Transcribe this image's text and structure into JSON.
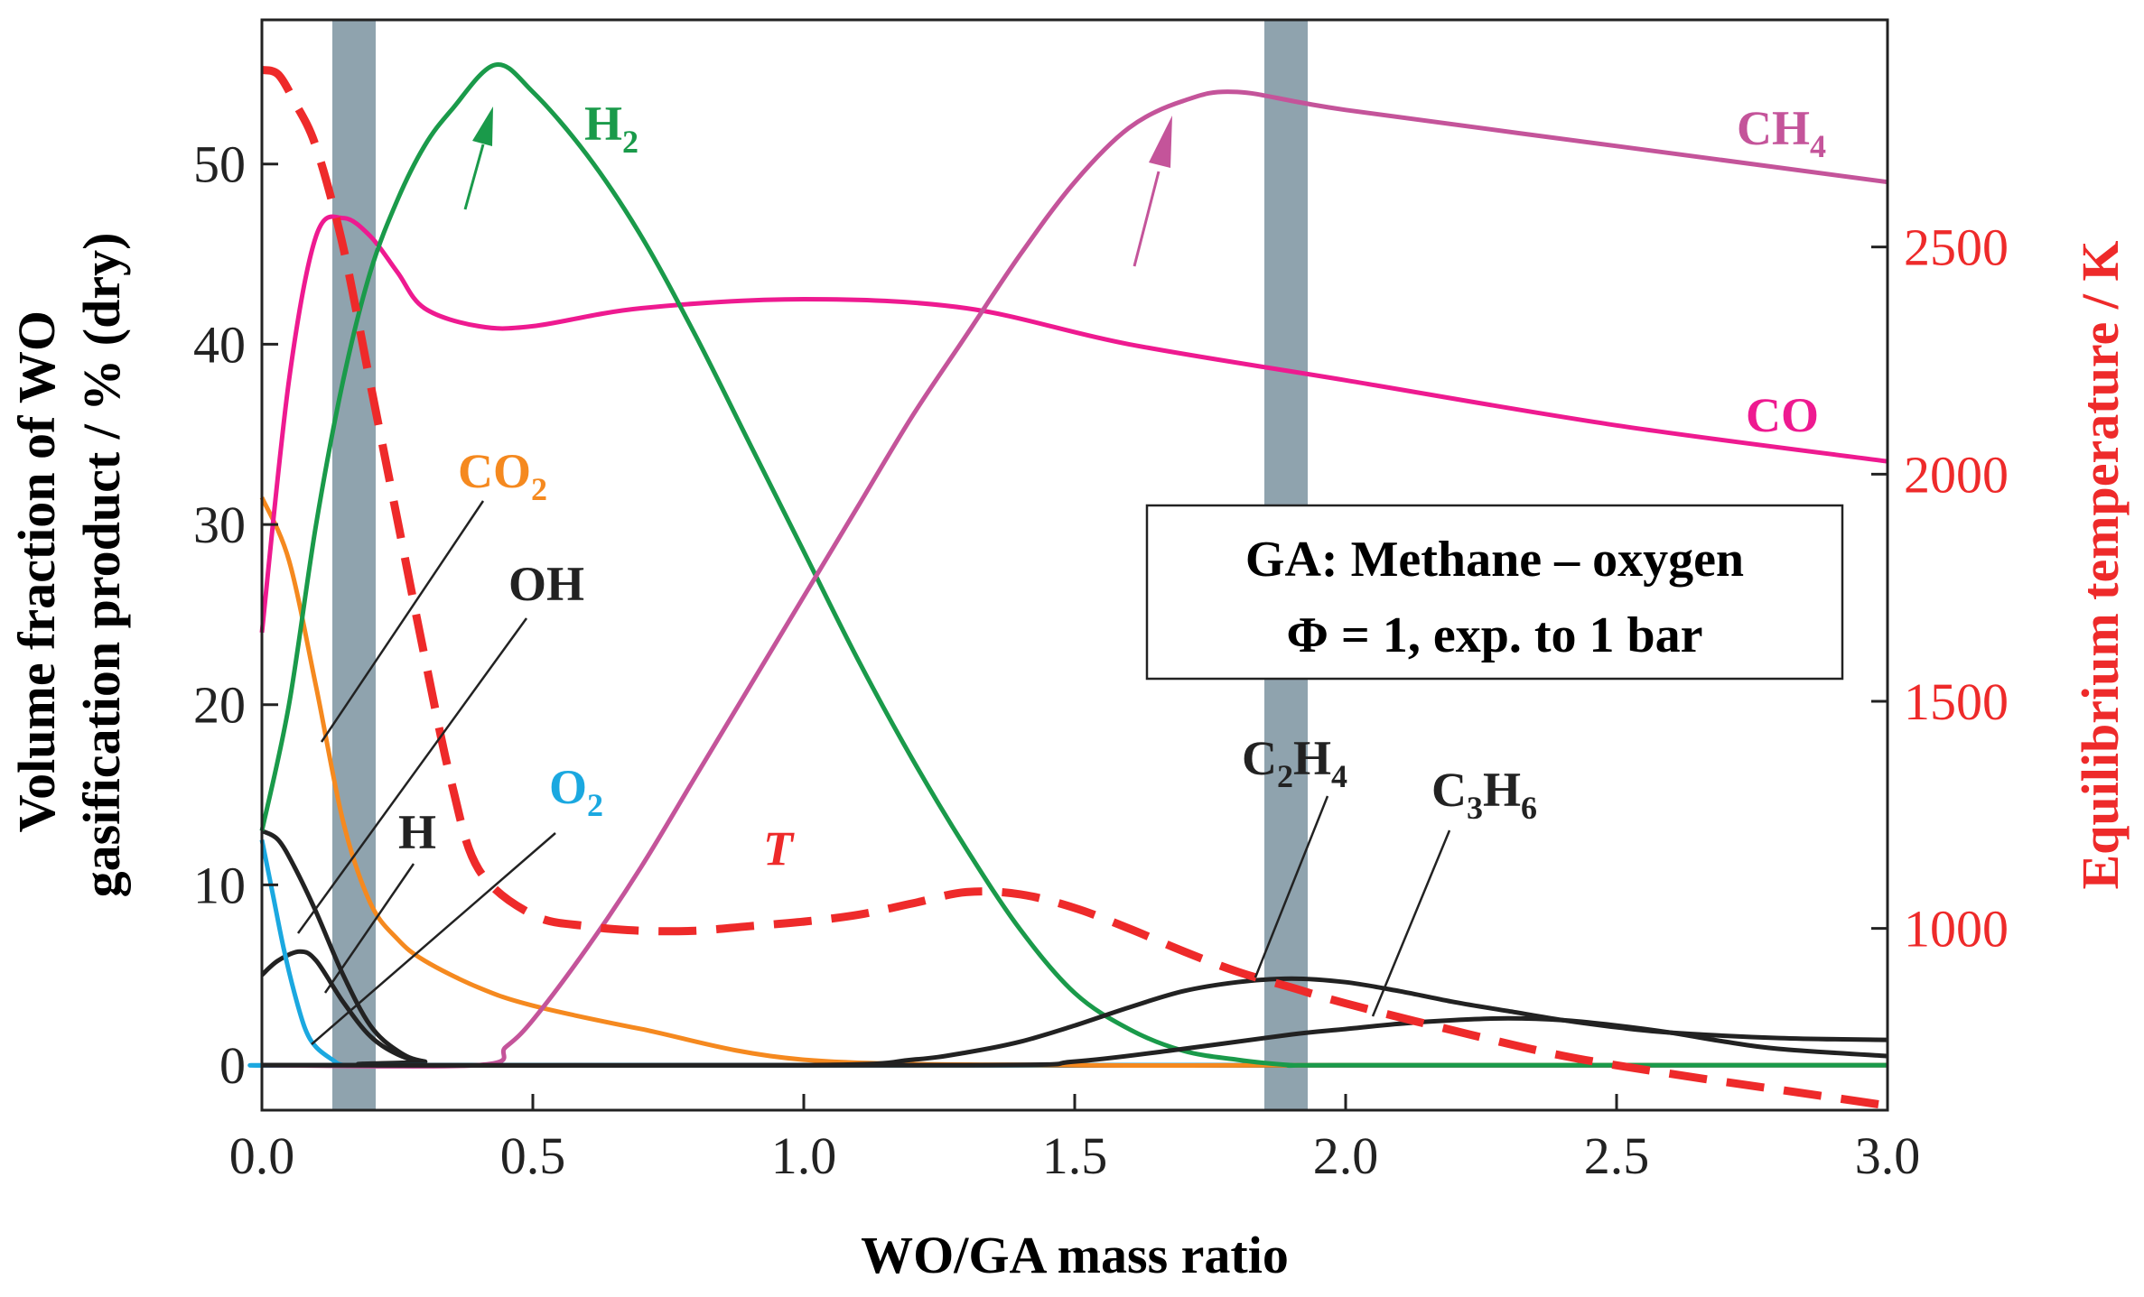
{
  "chart_data": {
    "type": "line",
    "title": "",
    "xlabel": "WO/GA mass ratio",
    "ylabel": "Volume fraction of WO gasification product / % (dry)",
    "ylabel_right": "Equilibrium temperature / K",
    "xlim": [
      0,
      3.0
    ],
    "ylim": [
      -2.5,
      58
    ],
    "ylim_right": [
      600,
      3000
    ],
    "x_ticks": [
      "0.0",
      "0.5",
      "1.0",
      "1.5",
      "2.0",
      "2.5",
      "3.0"
    ],
    "y_ticks": [
      "0",
      "10",
      "20",
      "30",
      "40",
      "50"
    ],
    "y_right_ticks": [
      "1000",
      "1500",
      "2000",
      "2500"
    ],
    "grid": false,
    "shaded_bands": [
      [
        0.13,
        0.21
      ],
      [
        1.85,
        1.93
      ]
    ],
    "annotation_box": {
      "line1": "GA: Methane – oxygen",
      "line2": "Φ = 1, exp. to 1 bar"
    },
    "colors": {
      "H2": "#1a9a4a",
      "CH4": "#c4549a",
      "CO": "#ee1a90",
      "CO2": "#f5891f",
      "O2": "#1ba8e0",
      "T": "#ee2a2a",
      "black": "#222222",
      "band": "#8fa3ae"
    },
    "series": [
      {
        "name": "H",
        "label": "H",
        "color": "#222222",
        "axis": "left",
        "x": [
          0,
          0.03,
          0.07,
          0.1,
          0.15,
          0.2,
          0.25,
          0.3,
          0.4,
          3.0
        ],
        "y": [
          5,
          5.8,
          6.3,
          5.8,
          3.5,
          1.6,
          0.6,
          0.2,
          0,
          0
        ]
      },
      {
        "name": "OH",
        "label": "OH",
        "color": "#222222",
        "axis": "left",
        "x": [
          0,
          0.03,
          0.06,
          0.1,
          0.15,
          0.2,
          0.25,
          0.3,
          0.4,
          3.0
        ],
        "y": [
          13,
          12.5,
          11,
          8.5,
          5,
          2.2,
          0.8,
          0.2,
          0,
          0
        ]
      },
      {
        "name": "O2",
        "label": "O",
        "label_sub": "2",
        "color": "#1ba8e0",
        "axis": "left",
        "x": [
          0,
          0.02,
          0.04,
          0.06,
          0.08,
          0.1,
          0.13,
          0.15,
          0.2,
          3.0
        ],
        "y": [
          12.5,
          9.5,
          6.5,
          4,
          2,
          1,
          0.3,
          0,
          0,
          0
        ]
      },
      {
        "name": "CO2",
        "label": "CO",
        "label_sub": "2",
        "color": "#f5891f",
        "axis": "left",
        "x": [
          0,
          0.05,
          0.1,
          0.15,
          0.2,
          0.25,
          0.3,
          0.4,
          0.5,
          0.7,
          1.0,
          1.5,
          2.0,
          3.0
        ],
        "y": [
          31.5,
          28,
          21,
          13.5,
          9,
          7,
          5.8,
          4.3,
          3.3,
          2,
          0.3,
          0,
          0,
          0
        ]
      },
      {
        "name": "CO",
        "label": "CO",
        "color": "#ee1a90",
        "axis": "left",
        "x": [
          0,
          0.05,
          0.1,
          0.15,
          0.2,
          0.25,
          0.3,
          0.4,
          0.5,
          0.7,
          1.0,
          1.3,
          1.6,
          2.0,
          2.5,
          3.0
        ],
        "y": [
          24,
          38,
          46,
          47,
          46,
          44,
          42,
          41,
          41,
          42,
          42.5,
          42,
          40,
          38,
          35.5,
          33.5
        ]
      },
      {
        "name": "H2",
        "label": "H",
        "label_sub": "2",
        "color": "#1a9a4a",
        "axis": "left",
        "x": [
          0,
          0.05,
          0.1,
          0.15,
          0.2,
          0.25,
          0.3,
          0.35,
          0.43,
          0.5,
          0.6,
          0.7,
          0.8,
          0.9,
          1.0,
          1.1,
          1.2,
          1.3,
          1.4,
          1.5,
          1.6,
          1.7,
          1.8,
          1.9,
          2.0,
          3.0
        ],
        "y": [
          13,
          20,
          30,
          38,
          44,
          48,
          51,
          53,
          55.5,
          54,
          50.5,
          46,
          40.5,
          34.5,
          28.5,
          22.5,
          17,
          12,
          7.5,
          4,
          2,
          0.8,
          0.3,
          0,
          0,
          0
        ]
      },
      {
        "name": "CH4",
        "label": "CH",
        "label_sub": "4",
        "color": "#c4549a",
        "axis": "left",
        "x": [
          0,
          0.4,
          0.45,
          0.5,
          0.6,
          0.7,
          0.8,
          0.9,
          1.0,
          1.1,
          1.2,
          1.3,
          1.4,
          1.5,
          1.6,
          1.7,
          1.8,
          2.0,
          2.5,
          3.0
        ],
        "y": [
          0,
          0,
          1,
          2.5,
          6.5,
          11,
          16,
          21,
          26,
          31,
          36,
          40.5,
          45,
          49,
          52,
          53.5,
          54,
          53,
          51,
          49
        ]
      },
      {
        "name": "C2H4",
        "label": "C",
        "label_sub": "2",
        "label2": "H",
        "label_sub2": "4",
        "color": "#222222",
        "axis": "left",
        "x": [
          0,
          1.0,
          1.2,
          1.3,
          1.4,
          1.5,
          1.6,
          1.7,
          1.8,
          1.9,
          2.0,
          2.1,
          2.2,
          2.3,
          2.4,
          2.5,
          2.6,
          2.8,
          3.0
        ],
        "y": [
          0,
          0,
          0.3,
          0.7,
          1.3,
          2.2,
          3.2,
          4.1,
          4.6,
          4.8,
          4.6,
          4.1,
          3.5,
          3,
          2.5,
          2.1,
          1.8,
          1.5,
          1.4
        ]
      },
      {
        "name": "C3H6",
        "label": "C",
        "label_sub": "3",
        "label2": "H",
        "label_sub2": "6",
        "color": "#222222",
        "axis": "left",
        "x": [
          0,
          1.3,
          1.5,
          1.7,
          1.9,
          2.0,
          2.1,
          2.2,
          2.3,
          2.4,
          2.5,
          2.6,
          2.7,
          2.8,
          3.0
        ],
        "y": [
          0,
          0,
          0.2,
          0.9,
          1.7,
          2,
          2.3,
          2.5,
          2.6,
          2.5,
          2.2,
          1.8,
          1.3,
          0.9,
          0.5
        ]
      },
      {
        "name": "T",
        "label": "T",
        "color": "#ee2a2a",
        "axis": "right",
        "dashed": true,
        "x": [
          0,
          0.03,
          0.06,
          0.1,
          0.15,
          0.2,
          0.25,
          0.3,
          0.35,
          0.4,
          0.5,
          0.6,
          0.7,
          0.8,
          0.9,
          1.0,
          1.1,
          1.2,
          1.3,
          1.4,
          1.5,
          1.6,
          1.7,
          1.8,
          1.9,
          2.0,
          2.2,
          2.4,
          2.6,
          2.8,
          3.0
        ],
        "y": [
          2890,
          2880,
          2820,
          2720,
          2500,
          2200,
          1900,
          1600,
          1320,
          1130,
          1030,
          1005,
          995,
          995,
          1005,
          1015,
          1030,
          1055,
          1080,
          1075,
          1045,
          1000,
          950,
          905,
          870,
          835,
          775,
          720,
          680,
          645,
          610
        ]
      }
    ]
  }
}
